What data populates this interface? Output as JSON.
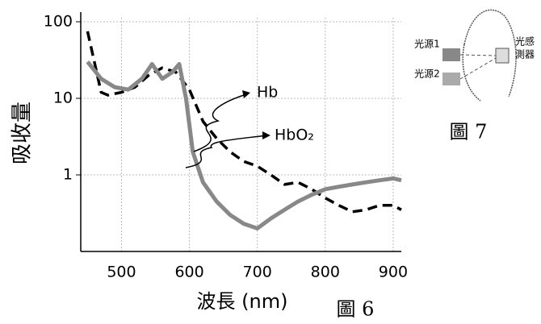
{
  "chart_data": {
    "type": "line",
    "x_label": "波長 (nm)",
    "y_label": "吸收量",
    "caption": "圖 6",
    "log_y": true,
    "grid": true,
    "xlim": [
      440,
      912
    ],
    "ylim": [
      0.1,
      100
    ],
    "xticks": [
      500,
      600,
      700,
      800,
      900
    ],
    "yticks": [
      1,
      10,
      100
    ],
    "series": [
      {
        "name": "Hb",
        "color": "#000000",
        "dashed": true,
        "x": [
          450,
          460,
          470,
          480,
          500,
          520,
          540,
          560,
          580,
          600,
          620,
          640,
          660,
          680,
          700,
          720,
          740,
          760,
          780,
          800,
          820,
          840,
          860,
          880,
          900,
          912
        ],
        "values": [
          75,
          30,
          12,
          11,
          12,
          14,
          20,
          25,
          22,
          13,
          5,
          3,
          2,
          1.5,
          1.3,
          1.0,
          0.75,
          0.8,
          0.65,
          0.5,
          0.4,
          0.33,
          0.35,
          0.4,
          0.4,
          0.35
        ]
      },
      {
        "name": "HbO₂",
        "color": "#888888",
        "dashed": false,
        "x": [
          450,
          470,
          490,
          510,
          530,
          545,
          560,
          575,
          585,
          595,
          605,
          620,
          640,
          660,
          680,
          700,
          720,
          740,
          760,
          780,
          800,
          820,
          840,
          860,
          880,
          900,
          912
        ],
        "values": [
          30,
          18,
          14,
          13,
          18,
          28,
          18,
          22,
          28,
          10,
          2,
          0.8,
          0.45,
          0.3,
          0.23,
          0.2,
          0.27,
          0.35,
          0.45,
          0.55,
          0.65,
          0.7,
          0.75,
          0.8,
          0.85,
          0.9,
          0.85
        ]
      }
    ]
  },
  "diagram": {
    "caption": "圖 7",
    "source1": "光源1",
    "source2": "光源2",
    "detector_line1": "光感",
    "detector_line2": "測器"
  }
}
